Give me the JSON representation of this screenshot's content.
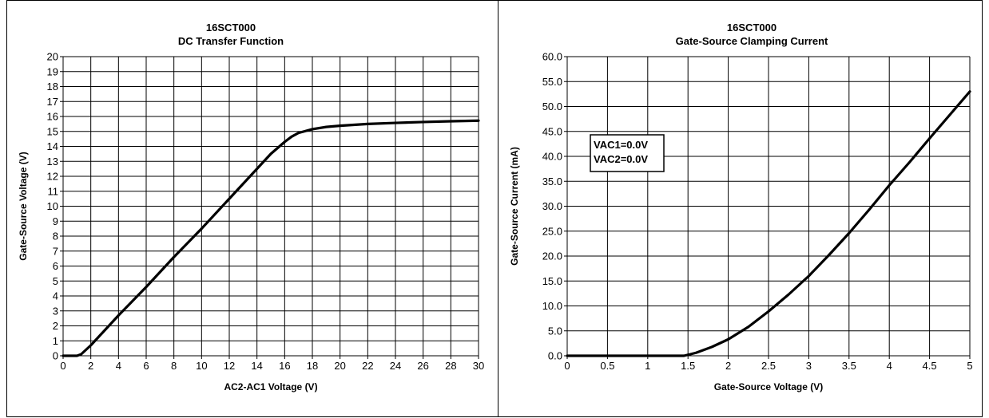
{
  "chart_data": [
    {
      "type": "line",
      "title": "16SCT000",
      "subtitle": "DC Transfer Function",
      "xlabel": "AC2-AC1 Voltage (V)",
      "ylabel": "Gate-Source Voltage (V)",
      "xlim": [
        0,
        30
      ],
      "ylim": [
        0,
        20
      ],
      "xticks": [
        "0",
        "2",
        "4",
        "6",
        "8",
        "10",
        "12",
        "14",
        "16",
        "18",
        "20",
        "22",
        "24",
        "26",
        "28",
        "30"
      ],
      "yticks": [
        "0",
        "1",
        "2",
        "3",
        "4",
        "5",
        "6",
        "7",
        "8",
        "9",
        "10",
        "11",
        "12",
        "13",
        "14",
        "15",
        "16",
        "17",
        "18",
        "19",
        "20"
      ],
      "grid": true,
      "series": [
        {
          "x": [
            0,
            0.5,
            1.0,
            1.3,
            2,
            4,
            6,
            8,
            10,
            12,
            14,
            15,
            16,
            16.5,
            17,
            18,
            19,
            20,
            22,
            24,
            26,
            28,
            30
          ],
          "y": [
            0,
            0,
            0,
            0.1,
            0.7,
            2.7,
            4.6,
            6.6,
            8.5,
            10.5,
            12.5,
            13.5,
            14.3,
            14.65,
            14.9,
            15.15,
            15.3,
            15.38,
            15.5,
            15.57,
            15.63,
            15.68,
            15.72
          ]
        }
      ]
    },
    {
      "type": "line",
      "title": "16SCT000",
      "subtitle": "Gate-Source Clamping Current",
      "xlabel": "Gate-Source Voltage (V)",
      "ylabel": "Gate-Source Current (mA)",
      "xlim": [
        0,
        5
      ],
      "ylim": [
        0,
        60
      ],
      "xticks": [
        "0",
        "0.5",
        "1",
        "1.5",
        "2",
        "2.5",
        "3",
        "3.5",
        "4",
        "4.5",
        "5"
      ],
      "yticks": [
        "0.0",
        "5.0",
        "10.0",
        "15.0",
        "20.0",
        "25.0",
        "30.0",
        "35.0",
        "40.0",
        "45.0",
        "50.0",
        "55.0",
        "60.0"
      ],
      "grid": true,
      "annotation": [
        "VAC1=0.0V",
        "VAC2=0.0V"
      ],
      "series": [
        {
          "x": [
            0,
            0.5,
            1.0,
            1.45,
            1.6,
            1.8,
            2.0,
            2.25,
            2.5,
            2.75,
            3.0,
            3.25,
            3.5,
            3.75,
            4.0,
            4.25,
            4.5,
            4.75,
            5.0
          ],
          "y": [
            0,
            0,
            0,
            0,
            0.6,
            1.8,
            3.3,
            5.8,
            8.9,
            12.3,
            16.0,
            20.2,
            24.6,
            29.3,
            34.2,
            38.8,
            43.6,
            48.3,
            53.0
          ]
        }
      ]
    }
  ]
}
